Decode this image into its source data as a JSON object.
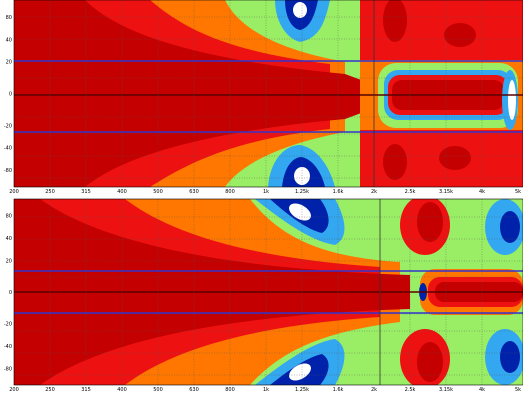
{
  "chart_data": [
    {
      "type": "heatmap",
      "x_tick_labels": [
        "200",
        "250",
        "315",
        "400",
        "500",
        "630",
        "800",
        "1k",
        "1.25k",
        "1.6k",
        "2k",
        "2.5k",
        "3.15k",
        "4k",
        "5k"
      ],
      "y_tick_labels": [
        "80",
        "40",
        "20",
        "0",
        "-20",
        "-40",
        "-80"
      ],
      "ylim": [
        -90,
        90
      ],
      "grid": true,
      "h_lines": [
        34,
        0,
        -34
      ],
      "v_line_at": "2k",
      "level_colors": [
        "#c40000",
        "#ee1111",
        "#ff7700",
        "#99ee66",
        "#33a7f0",
        "#0022aa",
        "#ffffff"
      ]
    },
    {
      "type": "heatmap",
      "x_tick_labels": [
        "200",
        "250",
        "315",
        "400",
        "500",
        "630",
        "800",
        "1k",
        "1.25k",
        "1.6k",
        "2k",
        "2.5k",
        "3.15k",
        "4k",
        "5k"
      ],
      "y_tick_labels": [
        "80",
        "40",
        "20",
        "0",
        "-20",
        "-40",
        "-80"
      ],
      "ylim": [
        -90,
        90
      ],
      "grid": true,
      "h_lines": [
        20,
        0,
        -20
      ],
      "v_line_at": "2k",
      "level_colors": [
        "#c40000",
        "#ee1111",
        "#ff7700",
        "#99ee66",
        "#33a7f0",
        "#0022aa",
        "#ffffff"
      ]
    }
  ]
}
